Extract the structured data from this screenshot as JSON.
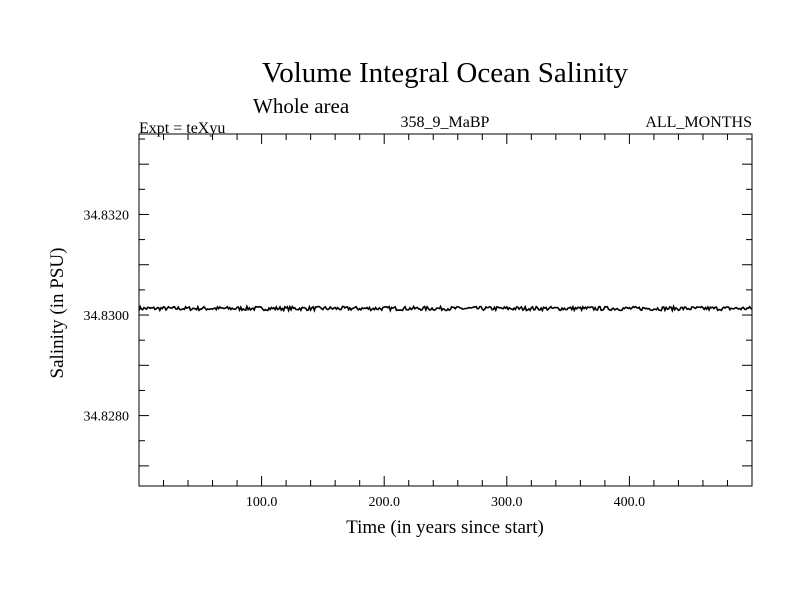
{
  "chart_data": {
    "type": "line",
    "title": "Volume Integral Ocean Salinity",
    "subtitle": "Whole area",
    "header_left": "Expt = teXyu",
    "header_center": "358_9_MaBP",
    "header_right": "ALL_MONTHS",
    "xlabel": "Time (in years since start)",
    "ylabel": "Salinity (in PSU)",
    "xlim": [
      0,
      500
    ],
    "ylim": [
      34.8266,
      34.8336
    ],
    "x_ticks": [
      100,
      200,
      300,
      400
    ],
    "x_tick_labels": [
      "100.0",
      "200.0",
      "300.0",
      "400.0"
    ],
    "y_ticks": [
      34.828,
      34.83,
      34.832
    ],
    "y_tick_labels": [
      "34.8280",
      "34.8300",
      "34.8320"
    ],
    "grid": false,
    "series": [
      {
        "color": "#000000",
        "x_start": 0,
        "x_end": 500,
        "mean": 34.83013,
        "amplitude": 4e-05,
        "approx_points": [
          [
            0,
            34.83013
          ],
          [
            50,
            34.83012
          ],
          [
            100,
            34.83013
          ],
          [
            150,
            34.83012
          ],
          [
            200,
            34.83012
          ],
          [
            250,
            34.83013
          ],
          [
            300,
            34.83013
          ],
          [
            350,
            34.83012
          ],
          [
            400,
            34.83013
          ],
          [
            450,
            34.83012
          ],
          [
            500,
            34.83013
          ]
        ]
      }
    ]
  }
}
